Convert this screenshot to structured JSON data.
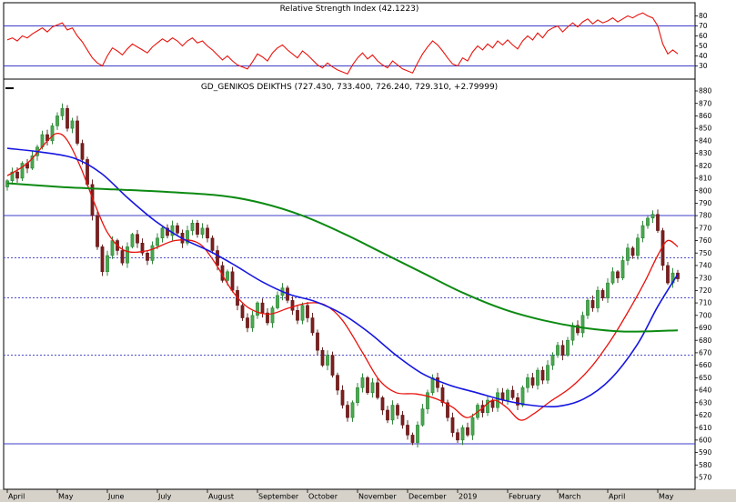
{
  "window": {
    "bottom_band_color": "#d6d2ca",
    "frame_color": "#000000",
    "background": "#ffffff"
  },
  "chart_data": [
    {
      "type": "line",
      "title": "Relative Strength Index (42.1223)",
      "series_name": "RSI",
      "color": "#e8120c",
      "ylim": [
        20,
        90
      ],
      "y_ticks": [
        80,
        70,
        60,
        50,
        40,
        30
      ],
      "ref_lines_solid": [
        70,
        30
      ],
      "ref_color": "#3c3cc8",
      "values": [
        56,
        58,
        55,
        60,
        58,
        62,
        65,
        68,
        64,
        69,
        71,
        73,
        66,
        68,
        60,
        54,
        46,
        38,
        33,
        30,
        40,
        48,
        45,
        41,
        47,
        52,
        49,
        46,
        43,
        49,
        53,
        57,
        54,
        58,
        55,
        50,
        55,
        58,
        53,
        55,
        50,
        46,
        41,
        36,
        40,
        35,
        31,
        29,
        27,
        34,
        42,
        39,
        35,
        43,
        48,
        51,
        46,
        42,
        38,
        45,
        41,
        36,
        31,
        28,
        33,
        29,
        26,
        24,
        22,
        31,
        38,
        43,
        37,
        41,
        35,
        31,
        28,
        35,
        31,
        27,
        25,
        23,
        33,
        42,
        49,
        55,
        51,
        45,
        38,
        32,
        30,
        38,
        35,
        44,
        50,
        46,
        52,
        48,
        55,
        51,
        56,
        51,
        47,
        55,
        60,
        56,
        63,
        58,
        65,
        68,
        70,
        64,
        69,
        73,
        69,
        74,
        77,
        72,
        76,
        73,
        75,
        78,
        74,
        77,
        80,
        78,
        81,
        83,
        80,
        78,
        70,
        52,
        42,
        46,
        42.12
      ]
    },
    {
      "type": "candlestick",
      "title": "GD_GENIKOS DEIKTHS (727.430, 733.400, 726.240, 729.310, +2.79999)",
      "symbol": "GD_GENIKOS DEIKTHS",
      "quote": {
        "open": "727.430",
        "high": "733.400",
        "low": "726.240",
        "close": "729.310",
        "change": "+2.79999"
      },
      "x_labels": [
        "April",
        "May",
        "June",
        "July",
        "August",
        "September",
        "October",
        "November",
        "December",
        "2019",
        "February",
        "March",
        "April",
        "May"
      ],
      "ylim": [
        560,
        890
      ],
      "y_ticks": [
        880,
        870,
        860,
        850,
        840,
        830,
        820,
        810,
        800,
        790,
        780,
        770,
        760,
        750,
        740,
        730,
        720,
        710,
        700,
        690,
        680,
        670,
        660,
        650,
        640,
        630,
        620,
        610,
        600,
        590,
        580,
        570
      ],
      "ref_lines_solid": [
        780,
        597
      ],
      "ref_lines_dashed": [
        746,
        714,
        668
      ],
      "ref_color": "#3c3cc8",
      "ref_dash_color": "#5050c8",
      "colors": {
        "up": "#4aa84e",
        "up_stroke": "#1d7a2a",
        "down": "#7e1e1e",
        "down_stroke": "#571111",
        "axis_text": "#000000"
      },
      "closes": [
        808,
        815,
        810,
        822,
        818,
        828,
        835,
        845,
        840,
        852,
        860,
        866,
        850,
        856,
        838,
        825,
        805,
        780,
        755,
        735,
        748,
        760,
        752,
        742,
        755,
        765,
        758,
        750,
        744,
        756,
        762,
        770,
        764,
        772,
        766,
        758,
        768,
        774,
        765,
        770,
        762,
        752,
        740,
        728,
        735,
        720,
        708,
        698,
        690,
        700,
        710,
        702,
        694,
        706,
        716,
        722,
        712,
        704,
        696,
        708,
        698,
        686,
        672,
        660,
        668,
        652,
        640,
        628,
        618,
        630,
        642,
        650,
        638,
        646,
        634,
        624,
        616,
        628,
        620,
        612,
        604,
        598,
        612,
        625,
        638,
        650,
        642,
        630,
        618,
        606,
        600,
        610,
        604,
        618,
        628,
        622,
        632,
        626,
        638,
        632,
        640,
        634,
        628,
        642,
        650,
        644,
        656,
        648,
        660,
        668,
        676,
        668,
        680,
        692,
        686,
        700,
        712,
        706,
        720,
        714,
        726,
        735,
        730,
        744,
        754,
        748,
        762,
        772,
        778,
        781,
        768,
        740,
        726,
        734,
        729.31
      ],
      "overlays": [
        {
          "name": "ma-short",
          "color": "#e8120c",
          "width": 1.3,
          "anchors": [
            [
              0,
              812
            ],
            [
              0.03,
              822
            ],
            [
              0.06,
              840
            ],
            [
              0.075,
              846
            ],
            [
              0.09,
              840
            ],
            [
              0.11,
              818
            ],
            [
              0.13,
              790
            ],
            [
              0.15,
              766
            ],
            [
              0.175,
              752
            ],
            [
              0.21,
              752
            ],
            [
              0.25,
              760
            ],
            [
              0.285,
              758
            ],
            [
              0.31,
              742
            ],
            [
              0.335,
              720
            ],
            [
              0.36,
              706
            ],
            [
              0.39,
              701
            ],
            [
              0.42,
              706
            ],
            [
              0.45,
              710
            ],
            [
              0.475,
              708
            ],
            [
              0.5,
              696
            ],
            [
              0.53,
              670
            ],
            [
              0.555,
              648
            ],
            [
              0.58,
              638
            ],
            [
              0.61,
              637
            ],
            [
              0.64,
              633
            ],
            [
              0.665,
              626
            ],
            [
              0.685,
              618
            ],
            [
              0.705,
              624
            ],
            [
              0.725,
              632
            ],
            [
              0.745,
              626
            ],
            [
              0.765,
              616
            ],
            [
              0.785,
              621
            ],
            [
              0.81,
              631
            ],
            [
              0.84,
              642
            ],
            [
              0.87,
              658
            ],
            [
              0.9,
              680
            ],
            [
              0.925,
              702
            ],
            [
              0.95,
              726
            ],
            [
              0.97,
              748
            ],
            [
              0.985,
              760
            ],
            [
              1,
              755
            ]
          ]
        },
        {
          "name": "ma-medium",
          "color": "#1616e0",
          "width": 1.6,
          "anchors": [
            [
              0,
              834
            ],
            [
              0.05,
              831
            ],
            [
              0.1,
              826
            ],
            [
              0.14,
              814
            ],
            [
              0.18,
              794
            ],
            [
              0.22,
              776
            ],
            [
              0.26,
              762
            ],
            [
              0.3,
              752
            ],
            [
              0.34,
              740
            ],
            [
              0.38,
              727
            ],
            [
              0.42,
              717
            ],
            [
              0.46,
              711
            ],
            [
              0.5,
              701
            ],
            [
              0.54,
              686
            ],
            [
              0.58,
              668
            ],
            [
              0.62,
              653
            ],
            [
              0.66,
              644
            ],
            [
              0.7,
              638
            ],
            [
              0.74,
              632
            ],
            [
              0.78,
              628
            ],
            [
              0.82,
              627
            ],
            [
              0.86,
              633
            ],
            [
              0.9,
              649
            ],
            [
              0.94,
              677
            ],
            [
              0.97,
              707
            ],
            [
              1,
              733
            ]
          ]
        },
        {
          "name": "ma-long",
          "color": "#0c8a12",
          "width": 2,
          "anchors": [
            [
              0,
              806
            ],
            [
              0.08,
              803
            ],
            [
              0.16,
              801
            ],
            [
              0.24,
              799
            ],
            [
              0.32,
              796
            ],
            [
              0.38,
              790
            ],
            [
              0.44,
              780
            ],
            [
              0.5,
              766
            ],
            [
              0.56,
              750
            ],
            [
              0.62,
              734
            ],
            [
              0.68,
              718
            ],
            [
              0.74,
              705
            ],
            [
              0.8,
              696
            ],
            [
              0.86,
              690
            ],
            [
              0.92,
              687
            ],
            [
              1,
              688
            ]
          ]
        }
      ]
    }
  ]
}
